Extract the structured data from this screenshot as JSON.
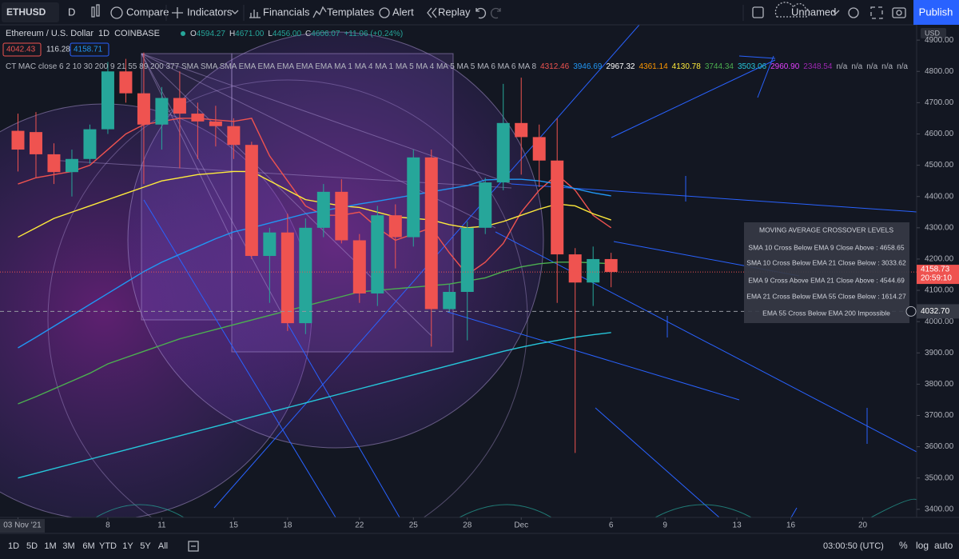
{
  "toolbar": {
    "symbol": "ETHUSD",
    "interval": "D",
    "buttons": [
      "Compare",
      "Indicators",
      "Financials",
      "Templates",
      "Alert",
      "Replay"
    ],
    "layout_name": "Unnamed",
    "publish": "Publish"
  },
  "legend": {
    "title": "Ethereum / U.S. Dollar",
    "interval": "1D",
    "exchange": "COINBASE",
    "ohlc": [
      {
        "label": "O",
        "value": "4594.27"
      },
      {
        "label": "H",
        "value": "4671.00"
      },
      {
        "label": "L",
        "value": "4456.00"
      },
      {
        "label": "C",
        "value": "4606.07"
      }
    ],
    "change": "+11.06 (+0.24%)",
    "quotes": [
      "4042.43",
      "116.28",
      "4158.71"
    ],
    "indicator": "CT MAC close 6 2 10 30 200 9 21 55 89 200 377 SMA SMA SMA EMA EMA EMA EMA EMA MA 1 MA 4 MA 1 MA 5 MA 4 MA 5 MA 5 MA 6 MA 6 MA 8",
    "indicator_values": [
      {
        "text": "4312.46",
        "color": "#ef5350"
      },
      {
        "text": "3946.69",
        "color": "#2196f3"
      },
      {
        "text": "2967.32",
        "color": "#ffffff"
      },
      {
        "text": "4361.14",
        "color": "#ff9800"
      },
      {
        "text": "4130.78",
        "color": "#ffeb3b"
      },
      {
        "text": "3744.34",
        "color": "#4caf50"
      },
      {
        "text": "3503.06",
        "color": "#26c6da"
      },
      {
        "text": "2960.90",
        "color": "#e040fb"
      },
      {
        "text": "2348.54",
        "color": "#9c27b0"
      },
      {
        "text": "n/a",
        "color": "#b2b5be"
      },
      {
        "text": "n/a",
        "color": "#b2b5be"
      },
      {
        "text": "n/a",
        "color": "#b2b5be"
      },
      {
        "text": "n/a",
        "color": "#b2b5be"
      },
      {
        "text": "n/a",
        "color": "#b2b5be"
      }
    ]
  },
  "chart_data": {
    "type": "candlestick",
    "currency": "USD",
    "x": [
      "2021-11-03",
      "2021-11-04",
      "2021-11-05",
      "2021-11-06",
      "2021-11-07",
      "2021-11-08",
      "2021-11-09",
      "2021-11-10",
      "2021-11-11",
      "2021-11-12",
      "2021-11-13",
      "2021-11-14",
      "2021-11-15",
      "2021-11-16",
      "2021-11-17",
      "2021-11-18",
      "2021-11-19",
      "2021-11-20",
      "2021-11-21",
      "2021-11-22",
      "2021-11-23",
      "2021-11-24",
      "2021-11-25",
      "2021-11-26",
      "2021-11-27",
      "2021-11-28",
      "2021-11-29",
      "2021-11-30",
      "2021-12-01",
      "2021-12-02",
      "2021-12-03",
      "2021-12-04",
      "2021-12-05",
      "2021-12-06"
    ],
    "open": [
      4610,
      4606,
      4535,
      4478,
      4520,
      4615,
      4800,
      4730,
      4630,
      4715,
      4665,
      4640,
      4625,
      4565,
      4210,
      4285,
      3995,
      4300,
      4415,
      4260,
      4090,
      4340,
      4270,
      4525,
      4040,
      4095,
      4300,
      4445,
      4635,
      4590,
      4515,
      4215,
      4125,
      4200
    ],
    "high": [
      4665,
      4670,
      4570,
      4550,
      4630,
      4830,
      4840,
      4860,
      4750,
      4800,
      4700,
      4690,
      4650,
      4575,
      4300,
      4345,
      4330,
      4440,
      4455,
      4280,
      4370,
      4375,
      4550,
      4550,
      4120,
      4320,
      4460,
      4760,
      4780,
      4630,
      4650,
      4235,
      4240,
      4220
    ],
    "low": [
      4480,
      4460,
      4440,
      4400,
      4505,
      4600,
      4700,
      4440,
      4550,
      4490,
      4520,
      4560,
      4520,
      4200,
      4060,
      3970,
      3960,
      4270,
      4250,
      4060,
      4050,
      4170,
      4240,
      3920,
      4030,
      3940,
      4280,
      4420,
      4470,
      4430,
      4060,
      3580,
      4050,
      4110
    ],
    "close": [
      4550,
      4535,
      4478,
      4520,
      4615,
      4800,
      4730,
      4630,
      4715,
      4665,
      4640,
      4625,
      4565,
      4210,
      4285,
      3995,
      4300,
      4415,
      4260,
      4090,
      4340,
      4270,
      4525,
      4040,
      4095,
      4300,
      4445,
      4635,
      4590,
      4515,
      4215,
      4125,
      4200,
      4158.73
    ],
    "up_color": "#26a69a",
    "down_color": "#ef5350",
    "lines": [
      {
        "color": "#ef5350",
        "values": [
          4440,
          4460,
          4470,
          4480,
          4500,
          4550,
          4600,
          4630,
          4640,
          4650,
          4650,
          4645,
          4640,
          4650,
          4530,
          4450,
          4370,
          4340,
          4340,
          4350,
          4300,
          4260,
          4280,
          4300,
          4220,
          4150,
          4190,
          4250,
          4350,
          4420,
          4470,
          4420,
          4340,
          4300
        ]
      },
      {
        "color": "#ffeb3b",
        "values": [
          4270,
          4300,
          4330,
          4350,
          4370,
          4390,
          4410,
          4430,
          4450,
          4460,
          4470,
          4475,
          4480,
          4480,
          4450,
          4420,
          4390,
          4380,
          4370,
          4365,
          4350,
          4335,
          4330,
          4325,
          4310,
          4300,
          4305,
          4320,
          4340,
          4360,
          4376,
          4370,
          4345,
          4325
        ]
      },
      {
        "color": "#2196f3",
        "values": [
          3916,
          3950,
          3985,
          4020,
          4055,
          4090,
          4125,
          4160,
          4190,
          4215,
          4240,
          4265,
          4287,
          4300,
          4315,
          4330,
          4345,
          4355,
          4365,
          4376,
          4385,
          4395,
          4405,
          4415,
          4425,
          4435,
          4453,
          4455,
          4455,
          4450,
          4440,
          4425,
          4412,
          4402
        ]
      },
      {
        "color": "#4caf50",
        "values": [
          3737,
          3760,
          3785,
          3810,
          3835,
          3865,
          3885,
          3905,
          3925,
          3945,
          3960,
          3975,
          3990,
          4005,
          4020,
          4035,
          4050,
          4065,
          4080,
          4095,
          4100,
          4105,
          4110,
          4115,
          4120,
          4130,
          4140,
          4160,
          4175,
          4185,
          4190,
          4190,
          4188,
          4185
        ]
      },
      {
        "color": "#26c6da",
        "values": [
          3500,
          3515,
          3530,
          3545,
          3560,
          3575,
          3590,
          3605,
          3620,
          3635,
          3650,
          3665,
          3680,
          3695,
          3710,
          3725,
          3740,
          3755,
          3770,
          3785,
          3800,
          3815,
          3830,
          3845,
          3860,
          3875,
          3890,
          3905,
          3918,
          3930,
          3940,
          3950,
          3958,
          3965
        ]
      }
    ],
    "xlim": [
      "2021-11-02",
      "2021-12-23"
    ],
    "xticks": [
      {
        "value": "2021-11-03",
        "label": "03 Nov '21"
      },
      {
        "value": "2021-11-08",
        "label": "8"
      },
      {
        "value": "2021-11-11",
        "label": "11"
      },
      {
        "value": "2021-11-15",
        "label": "15"
      },
      {
        "value": "2021-11-18",
        "label": "18"
      },
      {
        "value": "2021-11-22",
        "label": "22"
      },
      {
        "value": "2021-11-25",
        "label": "25"
      },
      {
        "value": "2021-11-28",
        "label": "28"
      },
      {
        "value": "2021-12-01",
        "label": "Dec"
      },
      {
        "value": "2021-12-06",
        "label": "6"
      },
      {
        "value": "2021-12-09",
        "label": "9"
      },
      {
        "value": "2021-12-13",
        "label": "13"
      },
      {
        "value": "2021-12-16",
        "label": "16"
      },
      {
        "value": "2021-12-20",
        "label": "20"
      }
    ],
    "ylim": [
      3374,
      4949
    ],
    "yticks": [
      {
        "value": 4900,
        "label": "4900.00"
      },
      {
        "value": 4800,
        "label": "4800.00"
      },
      {
        "value": 4700,
        "label": "4700.00"
      },
      {
        "value": 4600,
        "label": "4600.00"
      },
      {
        "value": 4500,
        "label": "4500.00"
      },
      {
        "value": 4400,
        "label": "4400.00"
      },
      {
        "value": 4300,
        "label": "4300.00"
      },
      {
        "value": 4200,
        "label": "4200.00"
      },
      {
        "value": 4100,
        "label": "4100.00"
      },
      {
        "value": 4000,
        "label": "4000.00"
      },
      {
        "value": 3900,
        "label": "3900.00"
      },
      {
        "value": 3800,
        "label": "3800.00"
      },
      {
        "value": 3700,
        "label": "3700.00"
      },
      {
        "value": 3600,
        "label": "3600.00"
      },
      {
        "value": 3500,
        "label": "3500.00"
      },
      {
        "value": 3400,
        "label": "3400.00"
      }
    ],
    "last_price": 4158.73,
    "countdown": "20:59:10",
    "crosshair_price": {
      "value": 4032.7,
      "label": "4032.70"
    }
  },
  "panel": {
    "title": "MOVING AVERAGE CROSSOVER LEVELS",
    "rows": [
      "SMA 10 Cross Below EMA 9 Close Above : 4658.65",
      "SMA 10 Cross Below EMA 21 Close Below : 3033.62",
      "EMA 9 Cross Above EMA 21 Close Above : 4544.69",
      "EMA 21 Cross Below EMA 55 Close Below : 1614.27",
      "EMA 55 Cross Below EMA 200 Impossible"
    ]
  },
  "bottom_bar": {
    "ranges": [
      "1D",
      "5D",
      "1M",
      "3M",
      "6M",
      "YTD",
      "1Y",
      "5Y",
      "All"
    ],
    "time": "03:00:50 (UTC)",
    "percent": "%",
    "log": "log",
    "auto": "auto"
  }
}
